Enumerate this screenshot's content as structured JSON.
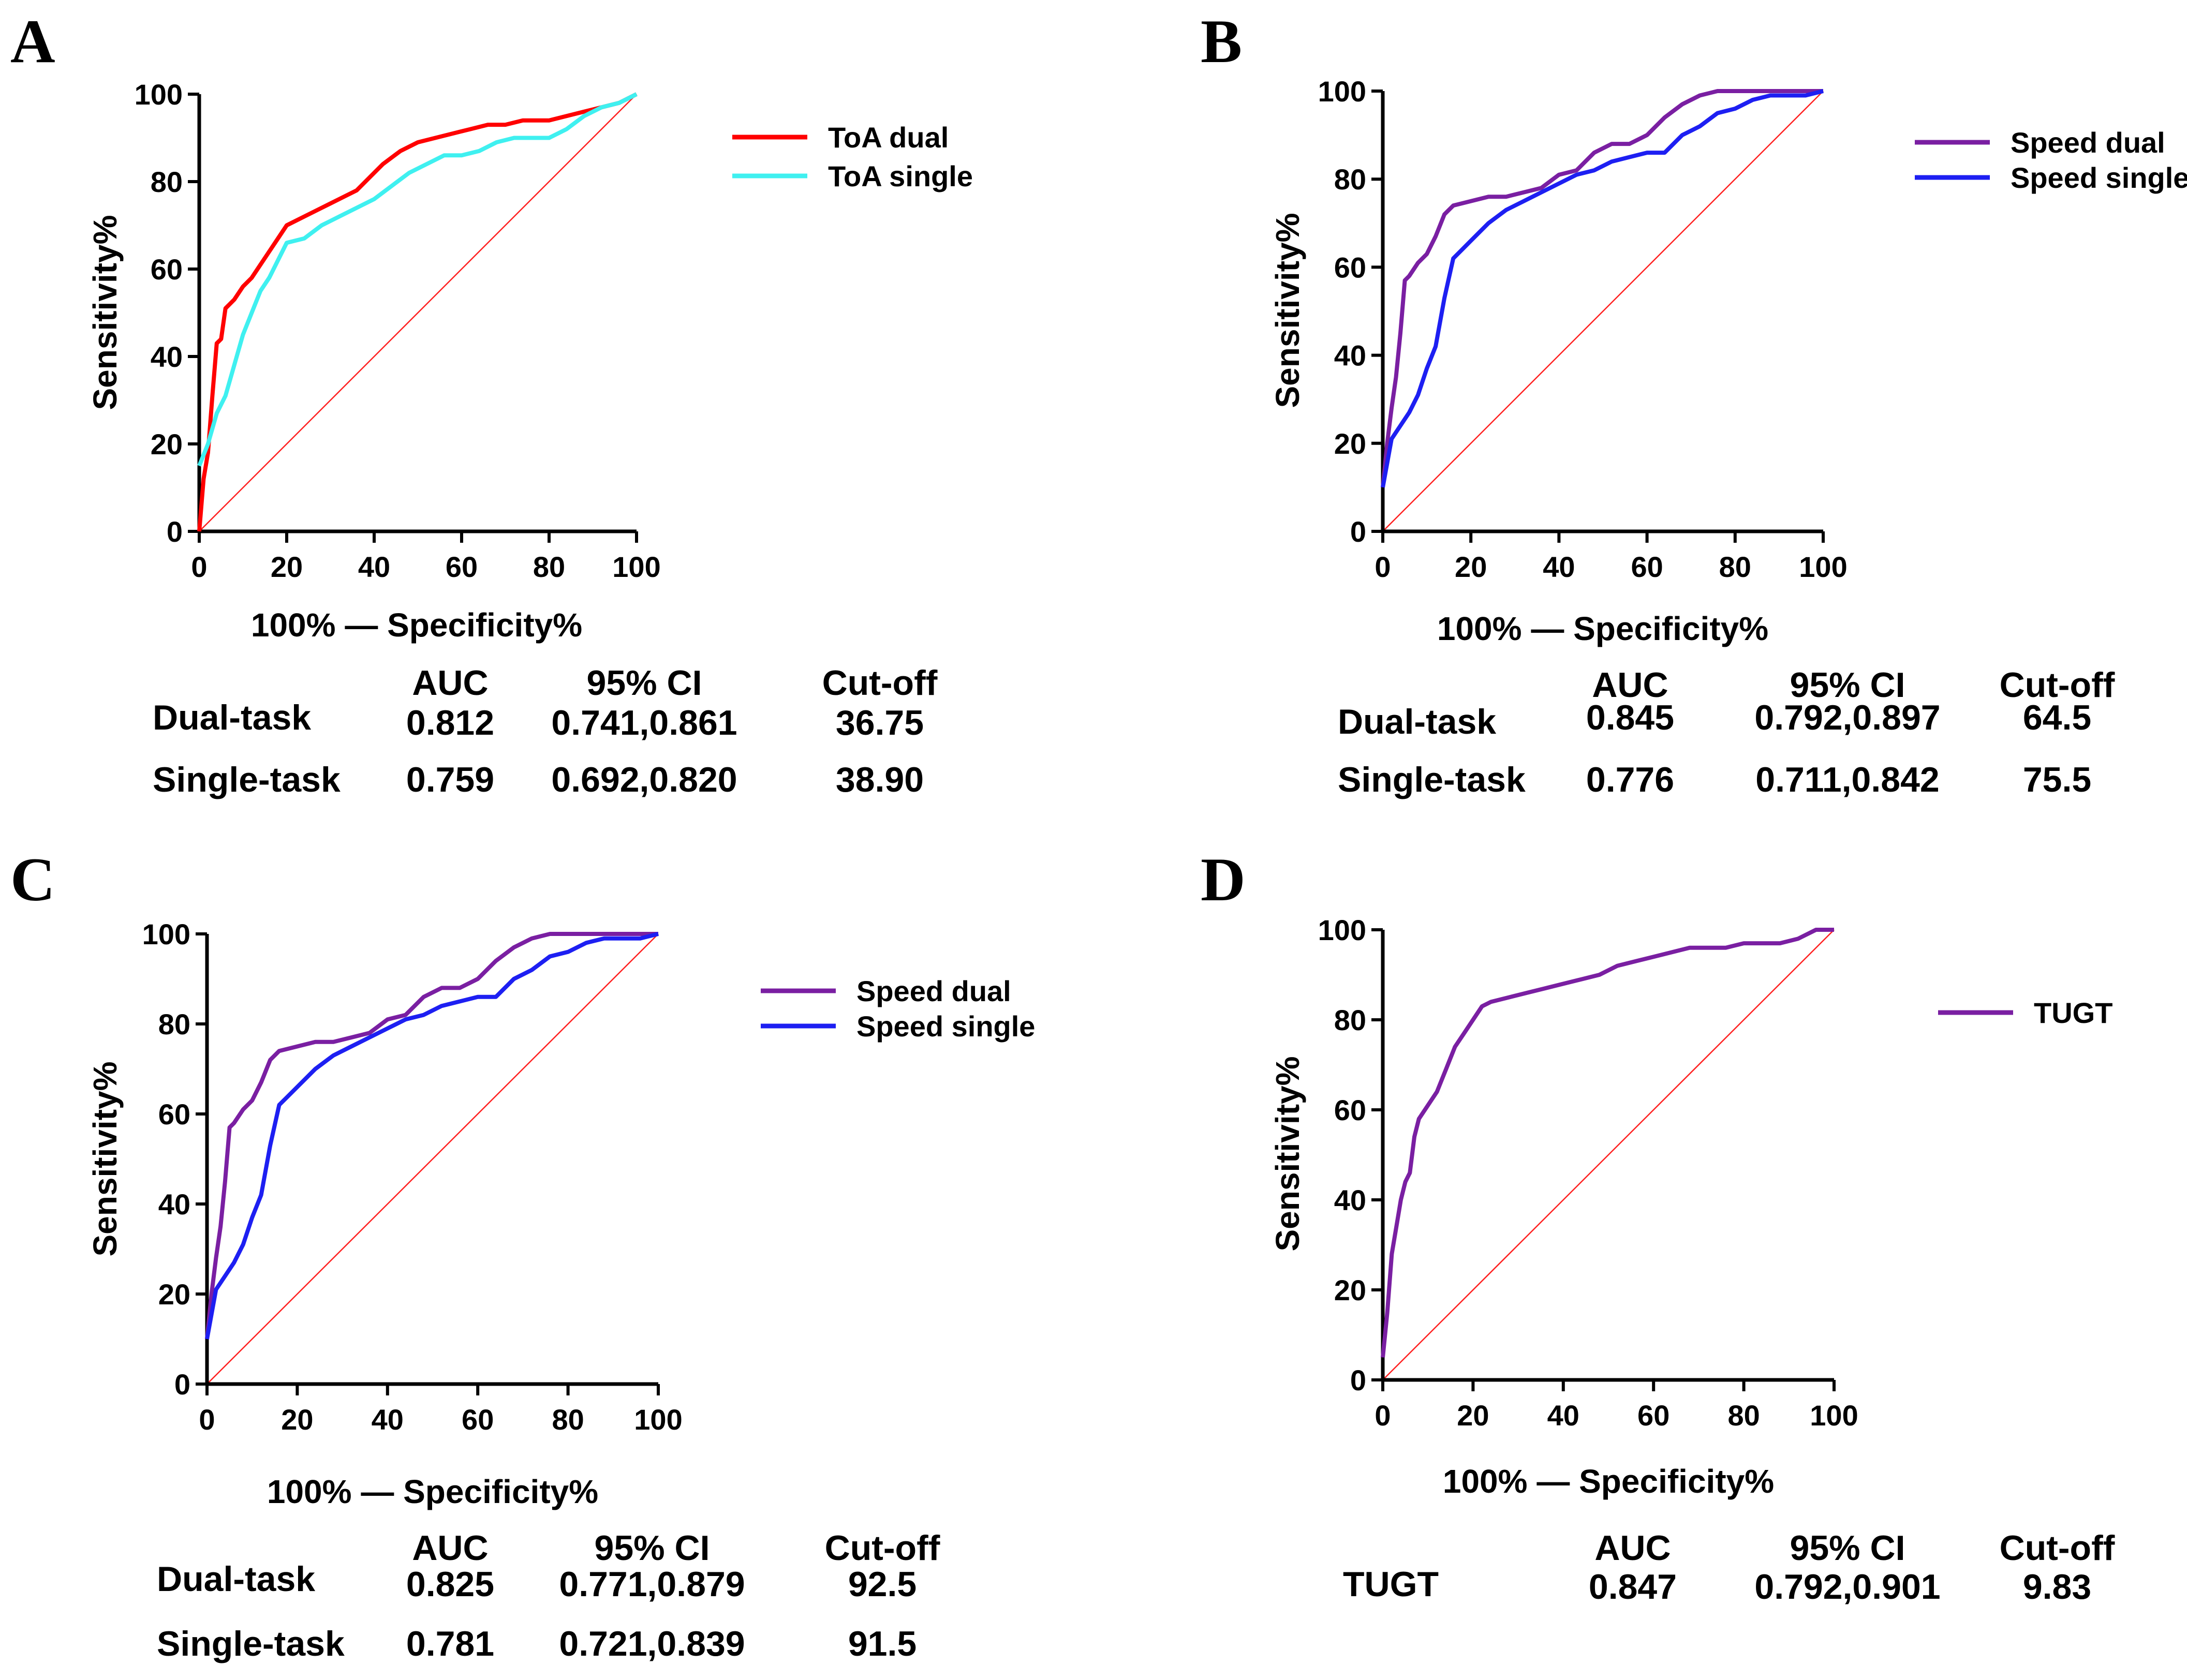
{
  "chart_data": [
    {
      "type": "line",
      "panel": "A",
      "xlabel": "100% — Specificity%",
      "ylabel": "Sensitivity%",
      "xlim": [
        0,
        100
      ],
      "ylim": [
        0,
        100
      ],
      "xticks": [
        "0",
        "20",
        "40",
        "60",
        "80",
        "100"
      ],
      "yticks": [
        "0",
        "20",
        "40",
        "60",
        "80",
        "100"
      ],
      "reference_line": true,
      "series": [
        {
          "name": "ToA dual",
          "color": "#ff0000",
          "x": [
            0,
            1,
            2,
            3,
            4,
            5,
            6,
            8,
            10,
            12,
            14,
            16,
            18,
            20,
            24,
            28,
            32,
            36,
            40,
            42,
            46,
            50,
            54,
            58,
            62,
            66,
            70,
            74,
            80,
            84,
            88,
            92,
            96,
            100
          ],
          "y": [
            0,
            12,
            18,
            31,
            43,
            44,
            51,
            53,
            56,
            58,
            61,
            64,
            67,
            70,
            72,
            74,
            76,
            78,
            82,
            84,
            87,
            89,
            90,
            91,
            92,
            93,
            93,
            94,
            94,
            95,
            96,
            97,
            98,
            100
          ]
        },
        {
          "name": "ToA single",
          "color": "#3ff0f0",
          "x": [
            0,
            2,
            4,
            6,
            8,
            10,
            12,
            14,
            16,
            18,
            20,
            24,
            28,
            32,
            36,
            40,
            44,
            48,
            52,
            56,
            60,
            64,
            68,
            72,
            76,
            80,
            84,
            88,
            92,
            96,
            100
          ],
          "y": [
            15,
            20,
            27,
            31,
            38,
            45,
            50,
            55,
            58,
            62,
            66,
            67,
            70,
            72,
            74,
            76,
            79,
            82,
            84,
            86,
            86,
            87,
            89,
            90,
            90,
            90,
            92,
            95,
            97,
            98,
            100
          ]
        }
      ],
      "stats": {
        "header": [
          "AUC",
          "95% CI",
          "Cut-off"
        ],
        "rows": [
          {
            "label": "Dual-task",
            "auc": "0.812",
            "ci": "0.741,0.861",
            "cutoff": "36.75"
          },
          {
            "label": "Single-task",
            "auc": "0.759",
            "ci": "0.692,0.820",
            "cutoff": "38.90"
          }
        ]
      }
    },
    {
      "type": "line",
      "panel": "B",
      "xlabel": "100% — Specificity%",
      "ylabel": "Sensitivity%",
      "xlim": [
        0,
        100
      ],
      "ylim": [
        0,
        100
      ],
      "xticks": [
        "0",
        "20",
        "40",
        "60",
        "80",
        "100"
      ],
      "yticks": [
        "0",
        "20",
        "40",
        "60",
        "80",
        "100"
      ],
      "reference_line": true,
      "series": [
        {
          "name": "Speed dual",
          "color": "#7a1fa2",
          "x": [
            0,
            1,
            2,
            3,
            4,
            5,
            6,
            8,
            10,
            12,
            14,
            16,
            20,
            24,
            28,
            32,
            36,
            40,
            44,
            48,
            52,
            56,
            60,
            64,
            68,
            72,
            76,
            80,
            90,
            100
          ],
          "y": [
            10,
            20,
            28,
            35,
            45,
            57,
            58,
            61,
            63,
            67,
            72,
            74,
            75,
            76,
            76,
            77,
            78,
            81,
            82,
            86,
            88,
            88,
            90,
            94,
            97,
            99,
            100,
            100,
            100,
            100
          ]
        },
        {
          "name": "Speed single",
          "color": "#1d1ff2",
          "x": [
            0,
            2,
            4,
            6,
            8,
            10,
            12,
            14,
            16,
            18,
            20,
            24,
            28,
            32,
            36,
            40,
            44,
            48,
            52,
            56,
            60,
            64,
            68,
            72,
            76,
            80,
            84,
            88,
            92,
            96,
            100
          ],
          "y": [
            10,
            21,
            24,
            27,
            31,
            37,
            42,
            53,
            62,
            64,
            66,
            70,
            73,
            75,
            77,
            79,
            81,
            82,
            84,
            85,
            86,
            86,
            90,
            92,
            95,
            96,
            98,
            99,
            99,
            99,
            100
          ]
        }
      ],
      "stats": {
        "header": [
          "AUC",
          "95% CI",
          "Cut-off"
        ],
        "rows": [
          {
            "label": "Dual-task",
            "auc": "0.845",
            "ci": "0.792,0.897",
            "cutoff": "64.5"
          },
          {
            "label": "Single-task",
            "auc": "0.776",
            "ci": "0.711,0.842",
            "cutoff": "75.5"
          }
        ]
      }
    },
    {
      "type": "line",
      "panel": "C",
      "xlabel": "100% — Specificity%",
      "ylabel": "Sensitivity%",
      "xlim": [
        0,
        100
      ],
      "ylim": [
        0,
        100
      ],
      "xticks": [
        "0",
        "20",
        "40",
        "60",
        "80",
        "100"
      ],
      "yticks": [
        "0",
        "20",
        "40",
        "60",
        "80",
        "100"
      ],
      "reference_line": true,
      "series": [
        {
          "name": "Speed dual",
          "color": "#7a1fa2",
          "x": [
            0,
            1,
            2,
            3,
            4,
            5,
            6,
            8,
            10,
            12,
            14,
            16,
            20,
            24,
            28,
            32,
            36,
            40,
            44,
            48,
            52,
            56,
            60,
            64,
            68,
            72,
            76,
            80,
            90,
            100
          ],
          "y": [
            10,
            20,
            28,
            35,
            45,
            57,
            58,
            61,
            63,
            67,
            72,
            74,
            75,
            76,
            76,
            77,
            78,
            81,
            82,
            86,
            88,
            88,
            90,
            94,
            97,
            99,
            100,
            100,
            100,
            100
          ]
        },
        {
          "name": "Speed single",
          "color": "#1d1ff2",
          "x": [
            0,
            2,
            4,
            6,
            8,
            10,
            12,
            14,
            16,
            18,
            20,
            24,
            28,
            32,
            36,
            40,
            44,
            48,
            52,
            56,
            60,
            64,
            68,
            72,
            76,
            80,
            84,
            88,
            92,
            96,
            100
          ],
          "y": [
            10,
            21,
            24,
            27,
            31,
            37,
            42,
            53,
            62,
            64,
            66,
            70,
            73,
            75,
            77,
            79,
            81,
            82,
            84,
            85,
            86,
            86,
            90,
            92,
            95,
            96,
            98,
            99,
            99,
            99,
            100
          ]
        }
      ],
      "stats": {
        "header": [
          "AUC",
          "95% CI",
          "Cut-off"
        ],
        "rows": [
          {
            "label": "Dual-task",
            "auc": "0.825",
            "ci": "0.771,0.879",
            "cutoff": "92.5"
          },
          {
            "label": "Single-task",
            "auc": "0.781",
            "ci": "0.721,0.839",
            "cutoff": "91.5"
          }
        ]
      }
    },
    {
      "type": "line",
      "panel": "D",
      "xlabel": "100% — Specificity%",
      "ylabel": "Sensitivity%",
      "xlim": [
        0,
        100
      ],
      "ylim": [
        0,
        100
      ],
      "xticks": [
        "0",
        "20",
        "40",
        "60",
        "80",
        "100"
      ],
      "yticks": [
        "0",
        "20",
        "40",
        "60",
        "80",
        "100"
      ],
      "reference_line": true,
      "series": [
        {
          "name": "TUGT",
          "color": "#7a1fa2",
          "x": [
            0,
            1,
            2,
            3,
            4,
            5,
            6,
            7,
            8,
            10,
            12,
            14,
            16,
            18,
            20,
            22,
            24,
            28,
            32,
            36,
            40,
            44,
            48,
            52,
            56,
            60,
            64,
            68,
            72,
            76,
            80,
            84,
            88,
            92,
            96,
            100
          ],
          "y": [
            5,
            15,
            28,
            34,
            40,
            44,
            46,
            54,
            58,
            61,
            64,
            69,
            74,
            77,
            80,
            83,
            84,
            85,
            86,
            87,
            88,
            89,
            90,
            92,
            93,
            94,
            95,
            96,
            96,
            96,
            97,
            97,
            97,
            98,
            100,
            100
          ]
        }
      ],
      "stats": {
        "header": [
          "AUC",
          "95% CI",
          "Cut-off"
        ],
        "rows": [
          {
            "label": "TUGT",
            "auc": "0.847",
            "ci": "0.792,0.901",
            "cutoff": "9.83"
          }
        ]
      }
    }
  ]
}
